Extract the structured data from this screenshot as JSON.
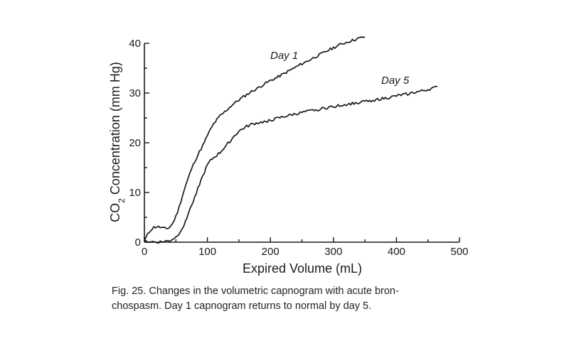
{
  "chart_data": {
    "type": "line",
    "xlabel": "Expired Volume (mL)",
    "ylabel_main": "CO",
    "ylabel_sub": "2",
    "ylabel_rest": " Concentration (mm Hg)",
    "xlim": [
      0,
      500
    ],
    "ylim": [
      0,
      40
    ],
    "xticks": [
      0,
      100,
      200,
      300,
      400,
      500
    ],
    "yticks": [
      0,
      10,
      20,
      30,
      40
    ],
    "grid": false,
    "series": [
      {
        "name": "Day 1",
        "x": [
          0,
          5,
          10,
          15,
          20,
          25,
          30,
          35,
          40,
          45,
          50,
          55,
          60,
          65,
          70,
          75,
          80,
          85,
          90,
          95,
          100,
          110,
          120,
          130,
          140,
          150,
          160,
          170,
          180,
          190,
          200,
          210,
          220,
          230,
          240,
          250,
          260,
          270,
          280,
          290,
          300,
          310,
          320,
          330,
          340,
          350
        ],
        "y": [
          0.3,
          1.5,
          2.5,
          3.0,
          3.1,
          3.0,
          2.8,
          2.7,
          3.0,
          3.8,
          5.2,
          7.0,
          9.2,
          11.2,
          13.0,
          14.8,
          16.3,
          17.6,
          18.8,
          20.0,
          21.5,
          23.8,
          25.4,
          26.5,
          27.7,
          28.6,
          29.5,
          30.3,
          31.0,
          31.8,
          32.5,
          33.1,
          33.8,
          34.5,
          35.2,
          35.9,
          36.5,
          37.2,
          37.8,
          38.5,
          39.1,
          39.7,
          40.2,
          40.6,
          41.0,
          41.3
        ]
      },
      {
        "name": "Day 5",
        "x": [
          0,
          10,
          20,
          30,
          40,
          50,
          55,
          60,
          65,
          70,
          75,
          80,
          85,
          90,
          95,
          100,
          105,
          110,
          120,
          130,
          140,
          150,
          160,
          170,
          180,
          190,
          200,
          220,
          240,
          260,
          280,
          300,
          320,
          340,
          360,
          380,
          400,
          420,
          440,
          460,
          465
        ],
        "y": [
          0.2,
          0.1,
          0.0,
          0.1,
          0.3,
          1.0,
          1.8,
          2.8,
          4.2,
          5.8,
          7.5,
          9.2,
          10.8,
          12.5,
          14.0,
          15.5,
          16.4,
          17.0,
          18.0,
          19.5,
          21.0,
          22.3,
          23.1,
          23.7,
          24.0,
          24.2,
          24.5,
          25.2,
          25.8,
          26.3,
          26.8,
          27.3,
          27.7,
          28.1,
          28.5,
          28.9,
          29.4,
          29.9,
          30.4,
          31.0,
          31.3
        ]
      }
    ]
  },
  "caption": {
    "line1": "Fig. 25. Changes in the volumetric capnogram with acute bron-",
    "line2": "chospasm. Day 1 capnogram returns to normal by day 5."
  }
}
